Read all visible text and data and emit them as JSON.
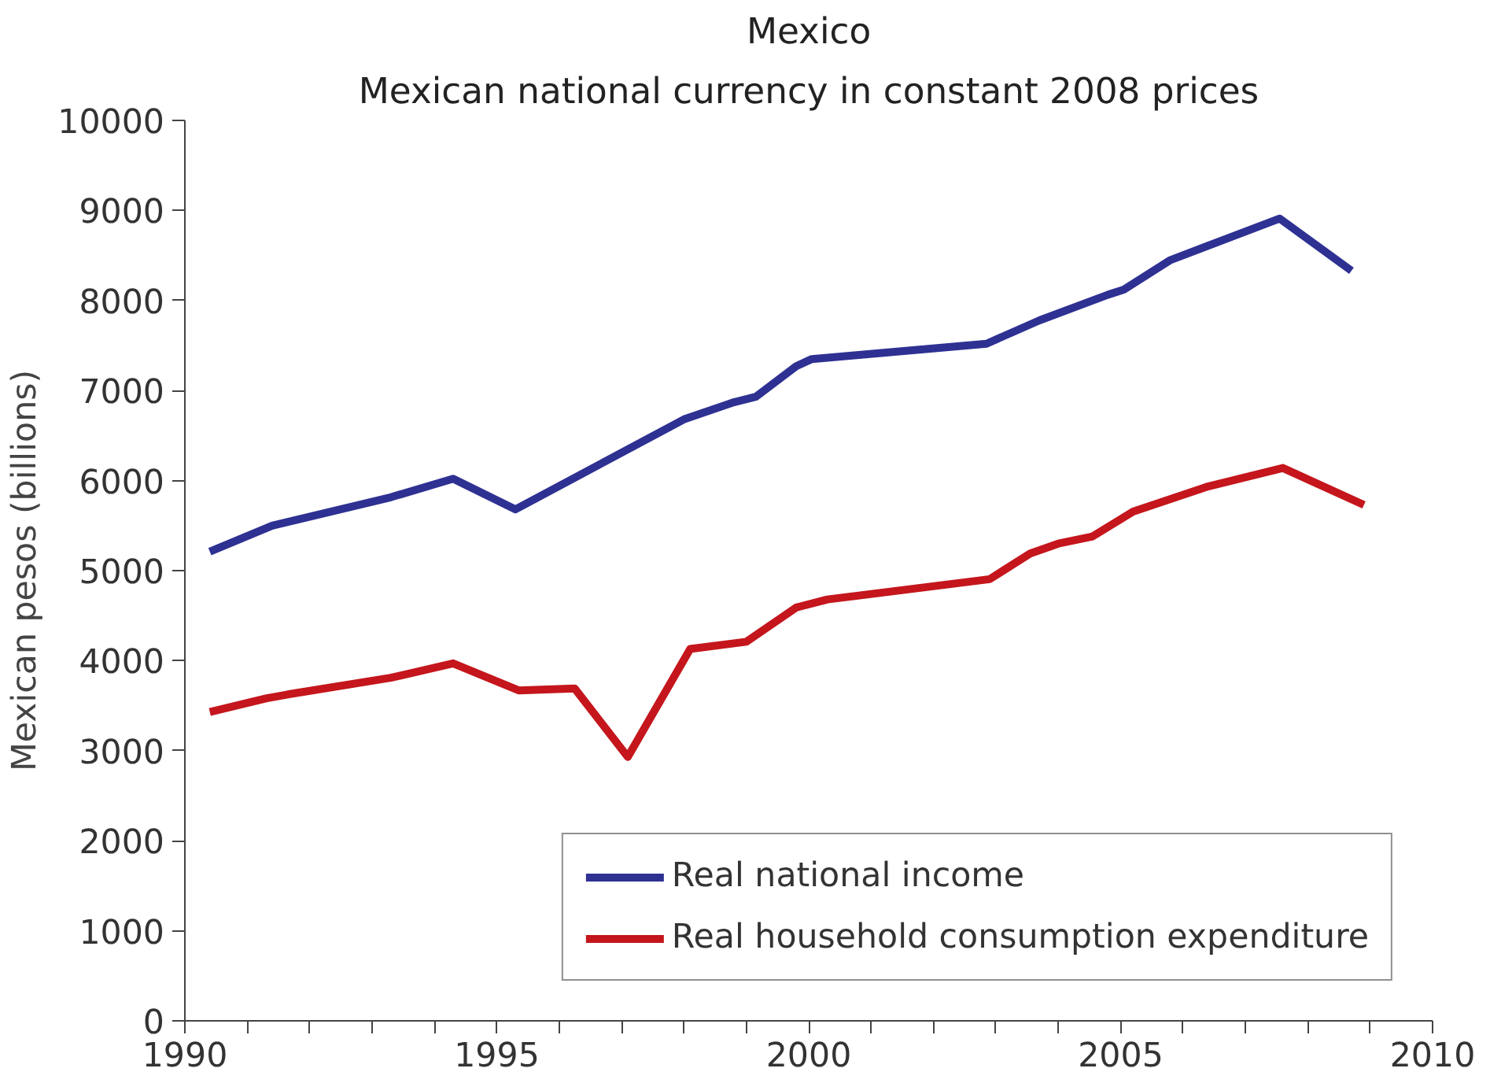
{
  "chart_data": {
    "type": "line",
    "title": "Mexico",
    "subtitle": "Mexican national currency in constant 2008 prices",
    "ylabel": "Mexican pesos (billions)",
    "xlim": [
      1990,
      2010
    ],
    "xticks": [
      1990,
      {
        "value": 1991,
        "label": null
      },
      {
        "value": 1992,
        "label": null
      },
      {
        "value": 1993,
        "label": null
      },
      {
        "value": 1994,
        "label": null
      },
      1995,
      {
        "value": 1996,
        "label": null
      },
      {
        "value": 1997,
        "label": null
      },
      {
        "value": 1998,
        "label": null
      },
      {
        "value": 1999,
        "label": null
      },
      2000,
      {
        "value": 2001,
        "label": null
      },
      {
        "value": 2002,
        "label": null
      },
      {
        "value": 2003,
        "label": null
      },
      {
        "value": 2004,
        "label": null
      },
      2005,
      {
        "value": 2006,
        "label": null
      },
      {
        "value": 2007,
        "label": null
      },
      {
        "value": 2008,
        "label": null
      },
      {
        "value": 2009,
        "label": null
      },
      2010
    ],
    "ylim": [
      0,
      10000
    ],
    "yticks": [
      0,
      1000,
      2000,
      3000,
      4000,
      5000,
      6000,
      7000,
      8000,
      9000,
      10000
    ],
    "grid": false,
    "legend": "bottom right",
    "marker": "none",
    "line_style": "solid",
    "series": [
      {
        "name": "Real national income",
        "color": "#2e3192",
        "x": [
          1990.4,
          1991.4,
          1993.3,
          1994.3,
          1995.3,
          1998.0,
          1998.8,
          1999.15,
          1999.8,
          2000.05,
          2002.85,
          2003.7,
          2004.8,
          2005.05,
          2005.8,
          2007.55,
          2008.7
        ],
        "values": [
          5210,
          5500,
          5815,
          6020,
          5680,
          6680,
          6870,
          6930,
          7270,
          7350,
          7520,
          7780,
          8065,
          8120,
          8450,
          8910,
          8330
        ]
      },
      {
        "name": "Real household consumption expenditure",
        "color": "#c4161c",
        "x": [
          1990.4,
          1991.3,
          1991.65,
          1993.3,
          1994.3,
          1995.35,
          1996.25,
          1997.1,
          1998.1,
          1999.0,
          1999.8,
          2000.3,
          2002.9,
          2003.55,
          2004.0,
          2004.55,
          2005.2,
          2006.4,
          2007.6,
          2008.9
        ],
        "values": [
          3430,
          3580,
          3625,
          3810,
          3970,
          3670,
          3690,
          2930,
          4130,
          4210,
          4590,
          4680,
          4905,
          5190,
          5300,
          5380,
          5655,
          5935,
          6140,
          5730
        ]
      }
    ]
  }
}
